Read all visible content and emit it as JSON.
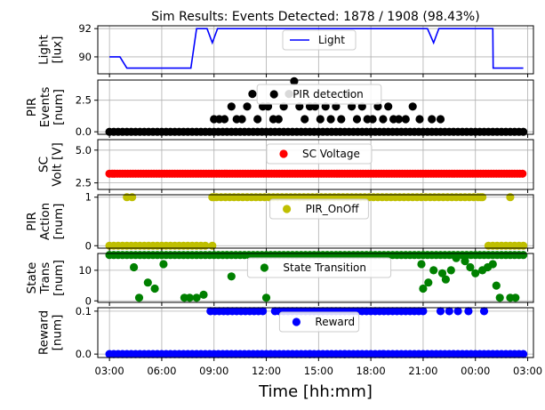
{
  "chart_data": {
    "type": "line",
    "title": "Sim Results: Events Detected: 1878 / 1908 (98.43%)",
    "xlabel": "Time [hh:mm]",
    "x_ticks": [
      "03:00",
      "06:00",
      "09:00",
      "12:00",
      "15:00",
      "18:00",
      "21:00",
      "00:00",
      "03:00"
    ],
    "x_range_hours": [
      2.33,
      27.33
    ],
    "grid": true,
    "panels": [
      {
        "id": "light",
        "ylabel": [
          "Light",
          "[lux]"
        ],
        "ylim": [
          88.8,
          92.2
        ],
        "yticks": [
          90,
          92
        ],
        "ytick_labels": [
          "90",
          "92"
        ],
        "style": "line",
        "color": "#0000ff",
        "legend": "Light",
        "legend_pos": "upper-center",
        "points": [
          [
            3.0,
            90.0
          ],
          [
            3.6,
            90.0
          ],
          [
            4.0,
            89.2
          ],
          [
            7.67,
            89.2
          ],
          [
            8.0,
            92.0
          ],
          [
            8.6,
            92.0
          ],
          [
            8.9,
            91.0
          ],
          [
            9.2,
            92.0
          ],
          [
            21.25,
            92.0
          ],
          [
            21.6,
            91.0
          ],
          [
            21.9,
            92.0
          ],
          [
            25.0,
            92.0
          ],
          [
            25.02,
            89.2
          ],
          [
            26.75,
            89.2
          ]
        ]
      },
      {
        "id": "pir-events",
        "ylabel": [
          "PIR",
          "Events",
          "[num]"
        ],
        "ylim": [
          -0.2,
          4.1
        ],
        "yticks": [
          0,
          2.5
        ],
        "ytick_labels": [
          "0.0",
          "2.5"
        ],
        "style": "scatter",
        "color": "#000000",
        "legend": "PIR detection",
        "legend_pos": "upper-center",
        "baseline_range": [
          3.0,
          26.75
        ],
        "baseline_step": 0.25,
        "baseline_value": 0,
        "points": [
          [
            9.0,
            1
          ],
          [
            9.3,
            1
          ],
          [
            9.6,
            1
          ],
          [
            10.0,
            2
          ],
          [
            10.3,
            1
          ],
          [
            10.6,
            1
          ],
          [
            10.9,
            2
          ],
          [
            11.2,
            3
          ],
          [
            11.5,
            1
          ],
          [
            11.8,
            2
          ],
          [
            12.1,
            2
          ],
          [
            12.4,
            1
          ],
          [
            12.7,
            1
          ],
          [
            13.0,
            2
          ],
          [
            13.3,
            3
          ],
          [
            13.6,
            4
          ],
          [
            13.9,
            2
          ],
          [
            14.2,
            1
          ],
          [
            14.5,
            2
          ],
          [
            14.8,
            2
          ],
          [
            15.1,
            1
          ],
          [
            15.4,
            2
          ],
          [
            15.7,
            1
          ],
          [
            16.0,
            2
          ],
          [
            16.3,
            1
          ],
          [
            16.6,
            3
          ],
          [
            16.9,
            2
          ],
          [
            17.2,
            1
          ],
          [
            17.5,
            2
          ],
          [
            17.8,
            1
          ],
          [
            18.1,
            1
          ],
          [
            18.4,
            2
          ],
          [
            18.7,
            1
          ],
          [
            19.0,
            2
          ],
          [
            19.3,
            1
          ],
          [
            19.6,
            1
          ],
          [
            20.0,
            1
          ],
          [
            20.4,
            2
          ],
          [
            20.8,
            1
          ],
          [
            21.5,
            1
          ],
          [
            22.0,
            1
          ]
        ]
      },
      {
        "id": "sc-voltage",
        "ylabel": [
          "SC",
          "Volt [V]"
        ],
        "ylim": [
          2.0,
          5.8
        ],
        "yticks": [
          2.5,
          5.0
        ],
        "ytick_labels": [
          "2.5",
          "5.0"
        ],
        "style": "scatter",
        "color": "#ff0000",
        "legend": "SC Voltage",
        "legend_pos": "upper-center",
        "baseline_range": [
          3.0,
          26.75
        ],
        "baseline_step": 0.15,
        "baseline_value": 3.2,
        "points": []
      },
      {
        "id": "pir-action",
        "ylabel": [
          "PIR",
          "Action",
          "[num]"
        ],
        "ylim": [
          -0.05,
          1.05
        ],
        "yticks": [
          0,
          1
        ],
        "ytick_labels": [
          "0",
          "1"
        ],
        "style": "scatter",
        "color": "#bfbf00",
        "legend": "PIR_OnOff",
        "legend_pos": "upper-center",
        "segments": [
          {
            "from": 3.0,
            "to": 8.6,
            "step": 0.25,
            "value": 0
          },
          {
            "from": 8.9,
            "to": 24.5,
            "step": 0.25,
            "value": 1
          },
          {
            "from": 24.75,
            "to": 26.75,
            "step": 0.25,
            "value": 0
          }
        ],
        "points": [
          [
            4.0,
            1
          ],
          [
            4.3,
            1
          ],
          [
            8.9,
            0
          ],
          [
            9.0,
            1
          ],
          [
            24.3,
            1
          ],
          [
            26.0,
            1
          ]
        ]
      },
      {
        "id": "state-transition",
        "ylabel": [
          "State",
          "Trans",
          "[num]"
        ],
        "ylim": [
          -0.5,
          15.5
        ],
        "yticks": [
          0,
          10
        ],
        "ytick_labels": [
          "0",
          "10"
        ],
        "style": "scatter",
        "color": "#008000",
        "legend": "State Transition",
        "legend_pos": "upper-center",
        "segments": [
          {
            "from": 3.0,
            "to": 26.75,
            "step": 0.25,
            "value": 15
          }
        ],
        "points": [
          [
            4.4,
            11
          ],
          [
            4.7,
            1
          ],
          [
            5.2,
            6
          ],
          [
            5.6,
            4
          ],
          [
            6.1,
            12
          ],
          [
            7.3,
            1
          ],
          [
            7.6,
            1
          ],
          [
            8.0,
            1
          ],
          [
            8.4,
            2
          ],
          [
            10.0,
            8
          ],
          [
            12.0,
            1
          ],
          [
            20.9,
            12
          ],
          [
            21.0,
            4
          ],
          [
            21.3,
            6
          ],
          [
            21.6,
            10
          ],
          [
            22.1,
            9
          ],
          [
            22.3,
            7
          ],
          [
            22.6,
            10
          ],
          [
            22.9,
            14
          ],
          [
            23.4,
            13
          ],
          [
            23.7,
            11
          ],
          [
            24.0,
            9
          ],
          [
            24.4,
            10
          ],
          [
            24.7,
            11
          ],
          [
            25.0,
            12
          ],
          [
            25.2,
            5
          ],
          [
            25.4,
            1
          ],
          [
            26.0,
            1
          ],
          [
            26.3,
            1
          ]
        ]
      },
      {
        "id": "reward",
        "ylabel": [
          "Reward",
          "[num]"
        ],
        "ylim": [
          -0.008,
          0.108
        ],
        "yticks": [
          0.0,
          0.1
        ],
        "ytick_labels": [
          "0.0",
          "0.1"
        ],
        "style": "scatter",
        "color": "#0000ff",
        "legend": "Reward",
        "legend_pos": "upper-center",
        "segments": [
          {
            "from": 3.0,
            "to": 26.75,
            "step": 0.25,
            "value": 0.0
          },
          {
            "from": 8.8,
            "to": 12.0,
            "step": 0.25,
            "value": 0.1
          },
          {
            "from": 12.5,
            "to": 21.0,
            "step": 0.25,
            "value": 0.1
          }
        ],
        "points": [
          [
            14.5,
            0.0
          ],
          [
            16.5,
            0.0
          ],
          [
            18.7,
            0.0
          ],
          [
            22.0,
            0.1
          ],
          [
            22.5,
            0.1
          ],
          [
            23.0,
            0.1
          ],
          [
            23.6,
            0.1
          ],
          [
            24.5,
            0.1
          ]
        ]
      }
    ]
  }
}
